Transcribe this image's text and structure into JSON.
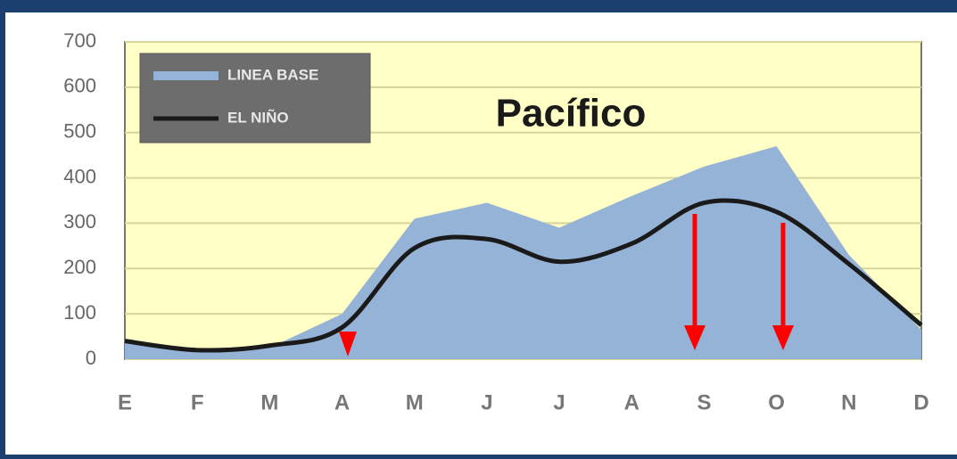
{
  "chart_data": {
    "type": "line",
    "title": "Pacífico",
    "categories": [
      "E",
      "F",
      "M",
      "A",
      "M",
      "J",
      "J",
      "A",
      "S",
      "O",
      "N",
      "D"
    ],
    "series": [
      {
        "name": "LINEA BASE",
        "color": "#95b3d7",
        "kind": "area",
        "values": [
          40,
          15,
          25,
          100,
          310,
          345,
          290,
          360,
          425,
          470,
          230,
          65
        ]
      },
      {
        "name": "EL NIÑO",
        "color": "#1a1a1a",
        "kind": "line",
        "values": [
          40,
          20,
          30,
          70,
          245,
          265,
          215,
          255,
          345,
          325,
          210,
          75
        ]
      }
    ],
    "ylim": [
      0,
      700
    ],
    "yticks": [
      0,
      100,
      200,
      300,
      400,
      500,
      600,
      700
    ],
    "grid": true,
    "legend": "upper left"
  }
}
